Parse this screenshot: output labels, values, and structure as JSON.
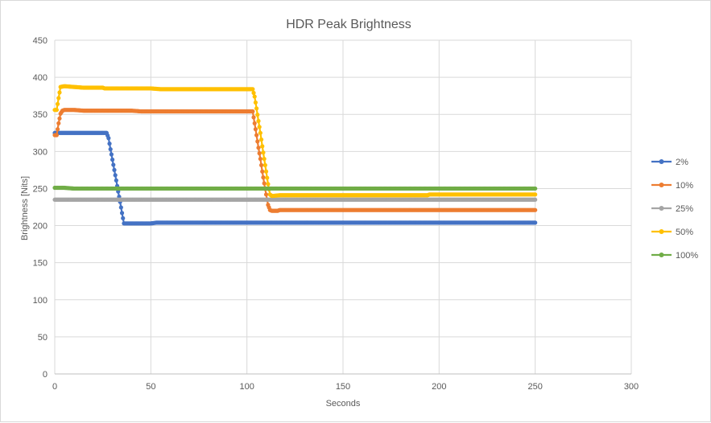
{
  "chart_data": {
    "type": "line",
    "title": "HDR Peak Brightness",
    "xlabel": "Seconds",
    "ylabel": "Brightness [Nits]",
    "xlim": [
      0,
      300
    ],
    "ylim": [
      0,
      450
    ],
    "xticks": [
      0,
      50,
      100,
      150,
      200,
      250,
      300
    ],
    "yticks": [
      0,
      50,
      100,
      150,
      200,
      250,
      300,
      350,
      400,
      450
    ],
    "grid": true,
    "legend_position": "right",
    "series": [
      {
        "name": "2%",
        "color": "#4472c4",
        "points": [
          [
            0,
            325
          ],
          [
            1,
            325
          ],
          [
            5,
            325
          ],
          [
            10,
            325
          ],
          [
            15,
            325
          ],
          [
            20,
            325
          ],
          [
            25,
            325
          ],
          [
            27,
            325
          ],
          [
            28,
            318
          ],
          [
            29,
            303
          ],
          [
            30,
            289
          ],
          [
            31,
            275
          ],
          [
            32,
            261
          ],
          [
            33,
            246
          ],
          [
            34,
            232
          ],
          [
            35,
            217
          ],
          [
            36,
            203
          ],
          [
            40,
            203
          ],
          [
            45,
            203
          ],
          [
            50,
            203
          ],
          [
            53,
            204
          ],
          [
            100,
            204
          ],
          [
            150,
            204
          ],
          [
            200,
            204
          ],
          [
            250,
            204
          ]
        ]
      },
      {
        "name": "10%",
        "color": "#ed7d31",
        "points": [
          [
            0,
            322
          ],
          [
            1,
            322
          ],
          [
            2,
            338
          ],
          [
            3,
            351
          ],
          [
            4,
            355
          ],
          [
            5,
            356
          ],
          [
            10,
            356
          ],
          [
            15,
            355
          ],
          [
            20,
            355
          ],
          [
            40,
            355
          ],
          [
            45,
            354
          ],
          [
            80,
            354
          ],
          [
            103,
            354
          ],
          [
            104,
            338
          ],
          [
            105,
            322
          ],
          [
            106,
            305
          ],
          [
            107,
            290
          ],
          [
            108,
            273
          ],
          [
            109,
            257
          ],
          [
            110,
            242
          ],
          [
            111,
            228
          ],
          [
            112,
            221
          ],
          [
            113,
            220
          ],
          [
            116,
            220
          ],
          [
            117,
            221
          ],
          [
            150,
            221
          ],
          [
            200,
            221
          ],
          [
            250,
            221
          ]
        ]
      },
      {
        "name": "25%",
        "color": "#a5a5a5",
        "points": [
          [
            0,
            235
          ],
          [
            5,
            235
          ],
          [
            50,
            235
          ],
          [
            100,
            235
          ],
          [
            110,
            235
          ],
          [
            150,
            235
          ],
          [
            200,
            235
          ],
          [
            250,
            235
          ]
        ]
      },
      {
        "name": "50%",
        "color": "#ffc000",
        "points": [
          [
            0,
            356
          ],
          [
            1,
            356
          ],
          [
            2,
            372
          ],
          [
            3,
            387
          ],
          [
            5,
            388
          ],
          [
            10,
            387
          ],
          [
            15,
            386
          ],
          [
            25,
            386
          ],
          [
            26,
            385
          ],
          [
            50,
            385
          ],
          [
            55,
            384
          ],
          [
            103,
            384
          ],
          [
            104,
            374
          ],
          [
            105,
            358
          ],
          [
            106,
            341
          ],
          [
            107,
            325
          ],
          [
            108,
            307
          ],
          [
            109,
            290
          ],
          [
            110,
            273
          ],
          [
            111,
            256
          ],
          [
            112,
            242
          ],
          [
            113,
            240
          ],
          [
            117,
            241
          ],
          [
            150,
            241
          ],
          [
            194,
            241
          ],
          [
            195,
            242
          ],
          [
            250,
            242
          ]
        ]
      },
      {
        "name": "100%",
        "color": "#70ad47",
        "points": [
          [
            0,
            251
          ],
          [
            5,
            251
          ],
          [
            10,
            250
          ],
          [
            50,
            250
          ],
          [
            100,
            250
          ],
          [
            150,
            250
          ],
          [
            200,
            250
          ],
          [
            250,
            250
          ]
        ]
      }
    ]
  }
}
